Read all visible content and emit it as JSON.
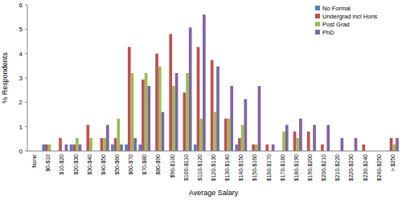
{
  "chart_data": {
    "type": "bar",
    "x_label": "Average Salary",
    "y_label": "% Respondents",
    "categories": [
      "None",
      "$0-$10",
      "$10-$20",
      "$20-$30",
      "$30-$40",
      "$40-$50",
      "$50-$60",
      "$60-$70",
      "$70-$80",
      "$80-$90",
      "$90-$100",
      "$100-$110",
      "$110-$120",
      "$120-$130",
      "$130-$140",
      "$140-$150",
      "$150-$160",
      "$160-$170",
      "$170-$180",
      "$180-$190",
      "$190-$200",
      "$200-$210",
      "$210-$220",
      "$220-$230",
      "$230-$240",
      "$240-$250",
      "> $250"
    ],
    "series": [
      {
        "name": "No Formal",
        "color": "#4f81bd",
        "values": [
          0,
          0.27,
          0,
          0.27,
          0,
          0,
          0.27,
          0.27,
          0.27,
          0,
          0,
          0,
          0.27,
          0,
          0,
          0.27,
          0,
          0,
          0,
          0,
          0,
          0,
          0,
          0,
          0,
          0,
          0
        ]
      },
      {
        "name": "Undergrad incl Hons",
        "color": "#c0504d",
        "values": [
          0,
          0.27,
          0.53,
          0.27,
          1.07,
          0.53,
          0.53,
          4.27,
          2.93,
          4.0,
          4.8,
          2.4,
          4.27,
          3.73,
          1.33,
          0.53,
          0.27,
          0.27,
          0,
          0.8,
          0.8,
          0.27,
          0,
          0,
          0.27,
          0,
          0.53
        ]
      },
      {
        "name": "Post Grad",
        "color": "#9bbb59",
        "values": [
          0,
          0.27,
          0,
          0.53,
          0.53,
          0.53,
          1.33,
          3.2,
          3.2,
          3.47,
          2.67,
          3.2,
          1.33,
          1.6,
          1.33,
          1.07,
          0.27,
          0,
          0.8,
          0.53,
          0,
          0,
          0,
          0,
          0,
          0,
          0.27
        ]
      },
      {
        "name": "PhD",
        "color": "#8064a2",
        "values": [
          0,
          0,
          0.27,
          0.27,
          0,
          1.07,
          0.27,
          0.53,
          2.67,
          1.6,
          3.2,
          5.07,
          5.6,
          3.47,
          2.67,
          2.13,
          2.67,
          0.27,
          1.07,
          1.33,
          1.07,
          1.07,
          0.53,
          0.53,
          0,
          0,
          0.53
        ]
      }
    ],
    "ylim": [
      0,
      6
    ],
    "yticks": [
      0,
      1,
      2,
      3,
      4,
      5,
      6
    ],
    "grid": false,
    "legend": "top-right"
  }
}
